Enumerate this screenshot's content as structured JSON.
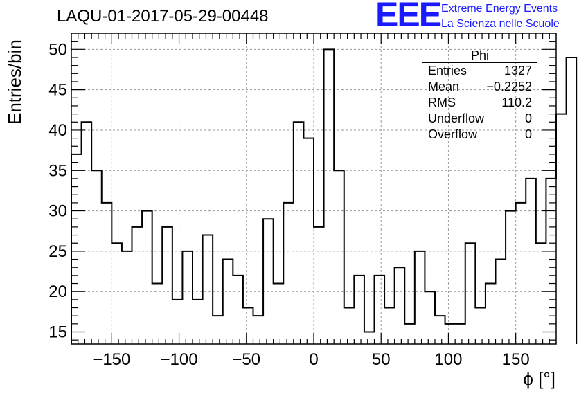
{
  "title": "LAQU-01-2017-05-29-00448",
  "logo": {
    "mark": "EEE",
    "line1": "Extreme Energy Events",
    "line2": "La Scienza nelle Scuole"
  },
  "stats": {
    "name": "Phi",
    "rows": [
      {
        "label": "Entries",
        "value": "1327"
      },
      {
        "label": "Mean",
        "value": "−0.2252"
      },
      {
        "label": "RMS",
        "value": "110.2"
      },
      {
        "label": "Underflow",
        "value": "0"
      },
      {
        "label": "Overflow",
        "value": "0"
      }
    ]
  },
  "chart_data": {
    "type": "bar",
    "histogram": true,
    "title": "LAQU-01-2017-05-29-00448",
    "xlabel": "ϕ [°]",
    "ylabel": "Entries/bin",
    "xlim": [
      -180,
      180
    ],
    "ylim": [
      13.5,
      52
    ],
    "xticks": [
      -150,
      -100,
      -50,
      0,
      50,
      100,
      150
    ],
    "xtick_labels": [
      "−150",
      "−100",
      "−50",
      "0",
      "50",
      "100",
      "150"
    ],
    "yticks": [
      15,
      20,
      25,
      30,
      35,
      40,
      45,
      50
    ],
    "grid": true,
    "bin_edges_start": -180,
    "bin_width": 7.5,
    "values": [
      37,
      41,
      35,
      31,
      26,
      25,
      28,
      30,
      21,
      28,
      19,
      25,
      19,
      27,
      17,
      24,
      22,
      18,
      17,
      29,
      21,
      31,
      41,
      39,
      28,
      50,
      35,
      18,
      22,
      15,
      22,
      18,
      23,
      16,
      25,
      20,
      17,
      16,
      16,
      26,
      18,
      21,
      24,
      30,
      31,
      34,
      26,
      34,
      42,
      49
    ]
  }
}
